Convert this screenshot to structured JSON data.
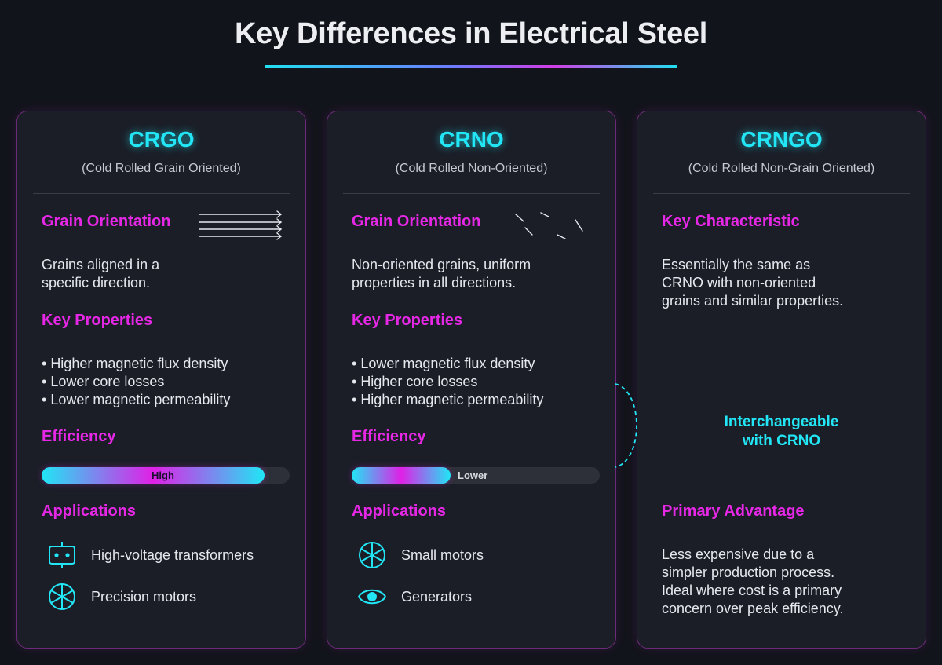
{
  "page": {
    "title": "Key Differences in Electrical Steel"
  },
  "colors": {
    "accent_cyan": "#22e6f5",
    "accent_magenta": "#e628e6",
    "background": "#12141b",
    "card": "#1b1e27"
  },
  "cards": [
    {
      "title": "CRGO",
      "subtitle": "(Cold Rolled Grain Oriented)",
      "grain_heading": "Grain Orientation",
      "grain_icon": "aligned-arrows-icon",
      "grain_text": [
        "Grains aligned in a",
        "specific direction."
      ],
      "properties_heading": "Key Properties",
      "properties": [
        "Higher magnetic flux density",
        "Lower core losses",
        "Lower magnetic permeability"
      ],
      "efficiency_heading": "Efficiency",
      "efficiency_label": "High",
      "efficiency_fraction": 0.9,
      "applications_heading": "Applications",
      "applications": [
        {
          "label": "High-voltage transformers",
          "icon": "transformer-icon"
        },
        {
          "label": "Precision motors",
          "icon": "motor-icon"
        }
      ]
    },
    {
      "title": "CRNO",
      "subtitle": "(Cold Rolled Non-Oriented)",
      "grain_heading": "Grain Orientation",
      "grain_icon": "random-grains-icon",
      "grain_text": [
        "Non-oriented grains, uniform",
        "properties in all directions."
      ],
      "properties_heading": "Key Properties",
      "properties": [
        "Lower magnetic flux density",
        "Higher core losses",
        "Higher magnetic permeability"
      ],
      "efficiency_heading": "Efficiency",
      "efficiency_label": "Lower",
      "efficiency_fraction": 0.4,
      "applications_heading": "Applications",
      "applications": [
        {
          "label": "Small motors",
          "icon": "motor-icon"
        },
        {
          "label": "Generators",
          "icon": "generator-icon"
        }
      ]
    },
    {
      "title": "CRNGO",
      "subtitle": "(Cold Rolled Non-Grain Oriented)",
      "key_heading": "Key Characteristic",
      "key_text": [
        "Essentially the same as",
        "CRNO with non-oriented",
        "grains and similar properties."
      ],
      "callout": [
        "Interchangeable",
        "with CRNO"
      ],
      "advantage_heading": "Primary Advantage",
      "advantage_text": [
        "Less expensive due to a",
        "simpler production process.",
        "Ideal where cost is a primary",
        "concern over peak efficiency."
      ]
    }
  ]
}
